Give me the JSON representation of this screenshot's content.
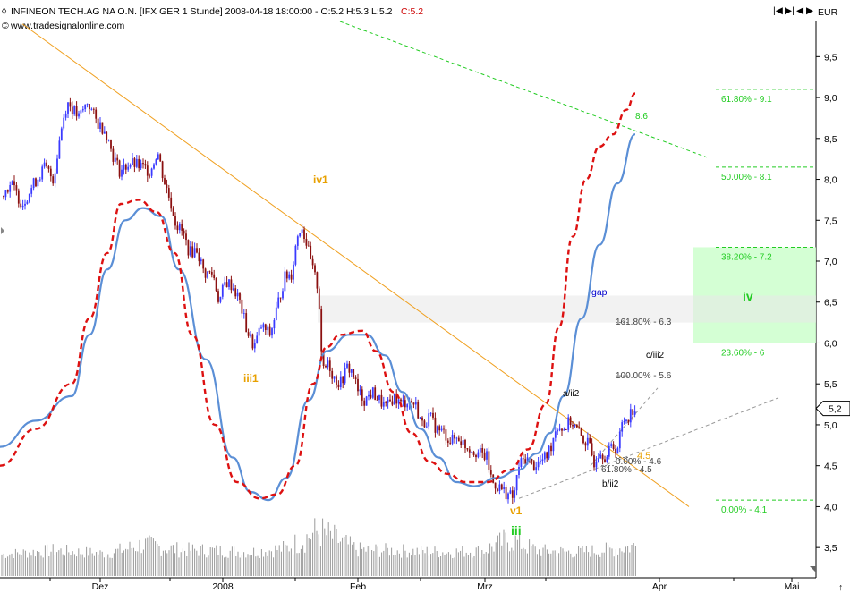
{
  "header": {
    "title": "INFINEON TECH.AG NA O.N. [IFX GER  1 Stunde] 2008-04-18 18:00:00 - O:5.2 H:5.3 L:5.2",
    "close": "C:5.2",
    "source": "www.tradesignalonline.com"
  },
  "nav_buttons": [
    "|◀",
    "▶|",
    "◀",
    "▶"
  ],
  "colors": {
    "candle_up": "#3a3aff",
    "candle_down": "#8b1010",
    "ma_blue": "#5b8fd6",
    "ma_red_dashed": "#dd1111",
    "trendline": "#f0a020",
    "fib_green": "#22cc22",
    "channel_gray": "#999999",
    "volume": "#9a9a9a",
    "target_zone": "#ccffcc"
  },
  "chart_data": {
    "type": "candlestick",
    "currency_label": "EUR",
    "y_ticks": [
      "3,5",
      "4,0",
      "4,5",
      "5,0",
      "5,5",
      "6,0",
      "6,5",
      "7,0",
      "7,5",
      "8,0",
      "8,5",
      "9,0",
      "9,5"
    ],
    "y_tick_values": [
      3.5,
      4.0,
      4.5,
      5.0,
      5.5,
      6.0,
      6.5,
      7.0,
      7.5,
      8.0,
      8.5,
      9.0,
      9.5
    ],
    "ylim": [
      3.13,
      9.93
    ],
    "x_ticks": [
      "Dez",
      "2008",
      "Feb",
      "Mrz",
      "Apr",
      "Mai"
    ],
    "last_price_label": "5,2",
    "last_price": 5.2,
    "price_path": [
      [
        0,
        7.8
      ],
      [
        12,
        7.95
      ],
      [
        25,
        7.7
      ],
      [
        38,
        7.95
      ],
      [
        50,
        8.15
      ],
      [
        60,
        8.0
      ],
      [
        68,
        8.6
      ],
      [
        75,
        8.95
      ],
      [
        88,
        8.75
      ],
      [
        98,
        8.95
      ],
      [
        108,
        8.7
      ],
      [
        118,
        8.6
      ],
      [
        126,
        8.3
      ],
      [
        134,
        8.1
      ],
      [
        145,
        8.2
      ],
      [
        158,
        8.15
      ],
      [
        168,
        8.1
      ],
      [
        176,
        8.35
      ],
      [
        183,
        8.0
      ],
      [
        190,
        7.75
      ],
      [
        197,
        7.45
      ],
      [
        204,
        7.35
      ],
      [
        212,
        7.1
      ],
      [
        220,
        7.15
      ],
      [
        228,
        6.85
      ],
      [
        238,
        6.85
      ],
      [
        245,
        6.5
      ],
      [
        252,
        6.75
      ],
      [
        260,
        6.7
      ],
      [
        268,
        6.5
      ],
      [
        276,
        6.15
      ],
      [
        284,
        5.95
      ],
      [
        292,
        6.2
      ],
      [
        302,
        6.1
      ],
      [
        310,
        6.45
      ],
      [
        318,
        6.8
      ],
      [
        326,
        6.85
      ],
      [
        332,
        7.3
      ],
      [
        337,
        7.45
      ],
      [
        343,
        7.2
      ],
      [
        348,
        6.95
      ],
      [
        352,
        6.8
      ],
      [
        356,
        6.65
      ],
      [
        359,
        5.95
      ],
      [
        362,
        5.6
      ],
      [
        366,
        5.8
      ],
      [
        372,
        5.6
      ],
      [
        380,
        5.5
      ],
      [
        388,
        5.7
      ],
      [
        394,
        5.65
      ],
      [
        400,
        5.4
      ],
      [
        408,
        5.3
      ],
      [
        416,
        5.4
      ],
      [
        424,
        5.3
      ],
      [
        432,
        5.2
      ],
      [
        440,
        5.35
      ],
      [
        448,
        5.25
      ],
      [
        456,
        5.3
      ],
      [
        464,
        5.25
      ],
      [
        472,
        5.0
      ],
      [
        480,
        5.1
      ],
      [
        488,
        4.95
      ],
      [
        496,
        4.9
      ],
      [
        504,
        4.8
      ],
      [
        512,
        4.85
      ],
      [
        520,
        4.75
      ],
      [
        528,
        4.7
      ],
      [
        536,
        4.65
      ],
      [
        544,
        4.6
      ],
      [
        550,
        4.3
      ],
      [
        556,
        4.25
      ],
      [
        562,
        4.2
      ],
      [
        568,
        4.15
      ],
      [
        574,
        4.1
      ],
      [
        580,
        4.5
      ],
      [
        588,
        4.6
      ],
      [
        596,
        4.5
      ],
      [
        604,
        4.55
      ],
      [
        610,
        4.6
      ],
      [
        616,
        4.75
      ],
      [
        622,
        5.0
      ],
      [
        630,
        4.95
      ],
      [
        638,
        5.05
      ],
      [
        644,
        4.95
      ],
      [
        650,
        4.85
      ],
      [
        658,
        4.75
      ],
      [
        664,
        4.55
      ],
      [
        670,
        4.7
      ],
      [
        678,
        4.6
      ],
      [
        684,
        4.75
      ],
      [
        690,
        4.7
      ],
      [
        696,
        5.05
      ],
      [
        702,
        5.1
      ],
      [
        708,
        5.2
      ]
    ],
    "volume_path": [
      [
        0,
        3.42
      ],
      [
        60,
        3.47
      ],
      [
        120,
        3.43
      ],
      [
        160,
        3.55
      ],
      [
        200,
        3.48
      ],
      [
        240,
        3.47
      ],
      [
        280,
        3.45
      ],
      [
        320,
        3.5
      ],
      [
        356,
        3.72
      ],
      [
        400,
        3.48
      ],
      [
        440,
        3.47
      ],
      [
        500,
        3.45
      ],
      [
        540,
        3.47
      ],
      [
        570,
        3.62
      ],
      [
        600,
        3.47
      ],
      [
        640,
        3.45
      ],
      [
        680,
        3.48
      ],
      [
        710,
        3.53
      ]
    ],
    "ma_blue": [
      [
        0,
        4.73
      ],
      [
        40,
        5.05
      ],
      [
        80,
        5.35
      ],
      [
        100,
        6.1
      ],
      [
        120,
        6.9
      ],
      [
        140,
        7.5
      ],
      [
        160,
        7.65
      ],
      [
        180,
        7.55
      ],
      [
        200,
        6.9
      ],
      [
        230,
        5.8
      ],
      [
        260,
        4.6
      ],
      [
        280,
        4.18
      ],
      [
        300,
        4.08
      ],
      [
        320,
        4.35
      ],
      [
        345,
        5.3
      ],
      [
        365,
        5.9
      ],
      [
        390,
        6.1
      ],
      [
        410,
        6.1
      ],
      [
        430,
        5.85
      ],
      [
        450,
        5.4
      ],
      [
        470,
        4.95
      ],
      [
        490,
        4.6
      ],
      [
        510,
        4.3
      ],
      [
        530,
        4.25
      ],
      [
        555,
        4.35
      ],
      [
        580,
        4.45
      ],
      [
        600,
        4.65
      ],
      [
        615,
        4.9
      ],
      [
        630,
        5.35
      ],
      [
        650,
        6.3
      ],
      [
        670,
        7.2
      ],
      [
        690,
        7.95
      ],
      [
        710,
        8.55
      ]
    ],
    "ma_red": [
      [
        0,
        4.5
      ],
      [
        40,
        4.95
      ],
      [
        80,
        5.5
      ],
      [
        100,
        6.3
      ],
      [
        120,
        7.1
      ],
      [
        135,
        7.7
      ],
      [
        155,
        7.75
      ],
      [
        175,
        7.6
      ],
      [
        195,
        7.1
      ],
      [
        215,
        6.1
      ],
      [
        240,
        5.0
      ],
      [
        265,
        4.3
      ],
      [
        290,
        4.1
      ],
      [
        310,
        4.15
      ],
      [
        330,
        4.5
      ],
      [
        350,
        5.5
      ],
      [
        365,
        5.95
      ],
      [
        380,
        6.1
      ],
      [
        405,
        6.15
      ],
      [
        420,
        5.9
      ],
      [
        440,
        5.4
      ],
      [
        460,
        4.9
      ],
      [
        480,
        4.55
      ],
      [
        500,
        4.4
      ],
      [
        520,
        4.3
      ],
      [
        545,
        4.3
      ],
      [
        570,
        4.45
      ],
      [
        590,
        4.7
      ],
      [
        610,
        5.25
      ],
      [
        625,
        6.2
      ],
      [
        640,
        7.3
      ],
      [
        655,
        8.0
      ],
      [
        670,
        8.4
      ],
      [
        685,
        8.55
      ],
      [
        700,
        8.85
      ],
      [
        710,
        9.05
      ]
    ],
    "trendline": [
      [
        25,
        9.9
      ],
      [
        770,
        4.0
      ]
    ],
    "channel_upper": [
      [
        380,
        9.93
      ],
      [
        790,
        8.27
      ]
    ],
    "support_line": [
      [
        580,
        4.1
      ],
      [
        870,
        5.33
      ]
    ],
    "wave_iii2_line": [
      [
        660,
        4.5
      ],
      [
        735,
        5.45
      ]
    ],
    "fib_levels": [
      {
        "label": "61.80% - 9.1",
        "value": 9.1
      },
      {
        "label": "50.00% - 8.1",
        "value": 8.15
      },
      {
        "label": "38.20% - 7.2",
        "value": 7.17
      },
      {
        "label": "23.60% - 6",
        "value": 6.0
      },
      {
        "label": "0.00% - 4.1",
        "value": 4.08
      }
    ],
    "target_zone": {
      "from": 6.0,
      "to": 7.17,
      "label": "iv"
    },
    "gap": {
      "from": 6.25,
      "to": 6.58,
      "label": "gap"
    },
    "projections": [
      {
        "label": "161.80% - 6.3",
        "value": 6.25,
        "pos": [
          688,
          363
        ]
      },
      {
        "label": "100.00% - 5.6",
        "value": 5.6,
        "pos": [
          688,
          423
        ]
      },
      {
        "label": "0.00% - 4.6",
        "value": 4.6,
        "pos": [
          688,
          519
        ]
      },
      {
        "label": "61.80% - 4.5",
        "value": 4.5,
        "pos": [
          672,
          528
        ]
      }
    ],
    "annotations": [
      {
        "text": "iv1",
        "cls": "ann-orange",
        "pos": [
          350,
          205
        ]
      },
      {
        "text": "iii1",
        "cls": "ann-orange",
        "pos": [
          272,
          427
        ]
      },
      {
        "text": "v1",
        "cls": "ann-orange",
        "pos": [
          570,
          575
        ]
      },
      {
        "text": "iii",
        "cls": "ann-green",
        "pos": [
          571,
          598
        ]
      },
      {
        "text": "a/ii2",
        "cls": "lbl",
        "pos": [
          629,
          443
        ]
      },
      {
        "text": "b/ii2",
        "cls": "lbl",
        "pos": [
          673,
          544
        ]
      },
      {
        "text": "c/iii2",
        "cls": "lbl",
        "pos": [
          722,
          400
        ]
      },
      {
        "text": "4.5",
        "cls": "ann-orange-small",
        "pos": [
          712,
          513
        ]
      },
      {
        "text": "8.6",
        "cls": "fib-green",
        "pos": [
          710,
          133
        ]
      },
      {
        "text": "gap",
        "cls": "lbl-blue",
        "pos": [
          661,
          330
        ]
      }
    ]
  }
}
